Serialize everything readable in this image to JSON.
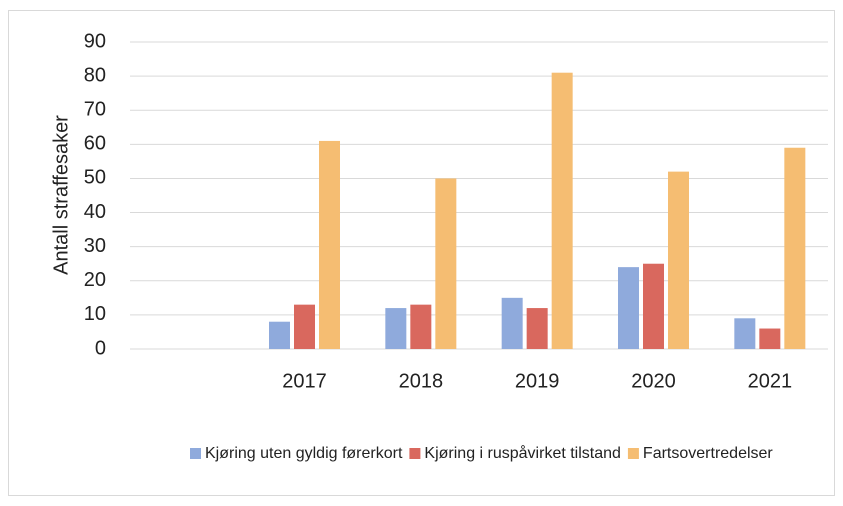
{
  "chart_data": {
    "type": "bar",
    "y_label": "Antall straffesaker",
    "categories": [
      null,
      "2017",
      "2018",
      "2019",
      "2020",
      "2021"
    ],
    "series": [
      {
        "name": "Kjøring uten gyldig førerkort",
        "color": "#8faadc",
        "values": [
          null,
          8,
          12,
          15,
          24,
          9
        ]
      },
      {
        "name": "Kjøring i ruspåvirket tilstand",
        "color": "#d9685e",
        "values": [
          null,
          13,
          13,
          12,
          25,
          6
        ]
      },
      {
        "name": "Fartsovertredelser",
        "color": "#f5bd72",
        "values": [
          null,
          61,
          50,
          81,
          52,
          59
        ]
      }
    ],
    "ylim": [
      0,
      90
    ],
    "yticks": [
      0,
      10,
      20,
      30,
      40,
      50,
      60,
      70,
      80,
      90
    ],
    "grid": true,
    "legend": "bottom"
  }
}
